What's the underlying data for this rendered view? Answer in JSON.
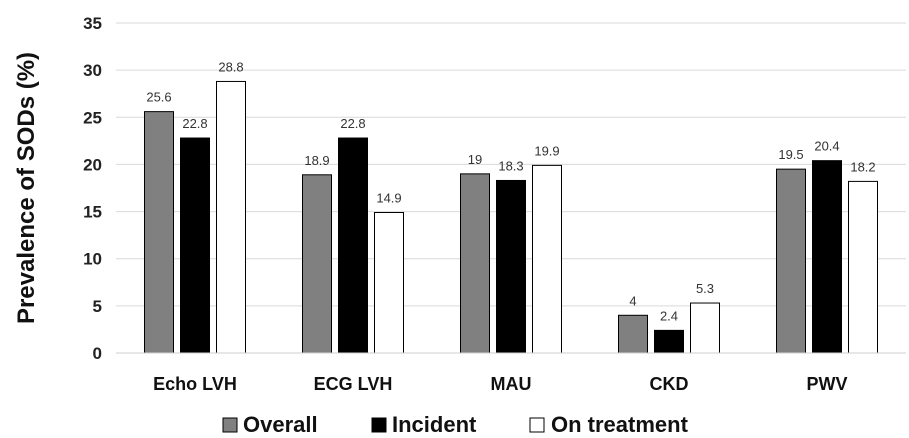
{
  "chart_data": {
    "type": "bar",
    "categories": [
      "Echo LVH",
      "ECG LVH",
      "MAU",
      "CKD",
      "PWV"
    ],
    "series": [
      {
        "name": "Overall",
        "color": "#808080",
        "values": [
          25.6,
          18.9,
          19,
          4,
          19.5
        ],
        "labels": [
          "25.6",
          "18.9",
          "19",
          "4",
          "19.5"
        ]
      },
      {
        "name": "Incident",
        "color": "#000000",
        "values": [
          22.8,
          22.8,
          18.3,
          2.4,
          20.4
        ],
        "labels": [
          "22.8",
          "22.8",
          "18.3",
          "2.4",
          "20.4"
        ]
      },
      {
        "name": "On treatment",
        "color": "#ffffff",
        "values": [
          28.8,
          14.9,
          19.9,
          5.3,
          18.2
        ],
        "labels": [
          "28.8",
          "14.9",
          "19.9",
          "5.3",
          "18.2"
        ]
      }
    ],
    "ylabel": "Prevalence of SODs (%)",
    "ylim": [
      0,
      35
    ],
    "yticks": [
      "0",
      "5",
      "10",
      "15",
      "20",
      "25",
      "30",
      "35"
    ],
    "grid": true,
    "legend": "bottom"
  }
}
